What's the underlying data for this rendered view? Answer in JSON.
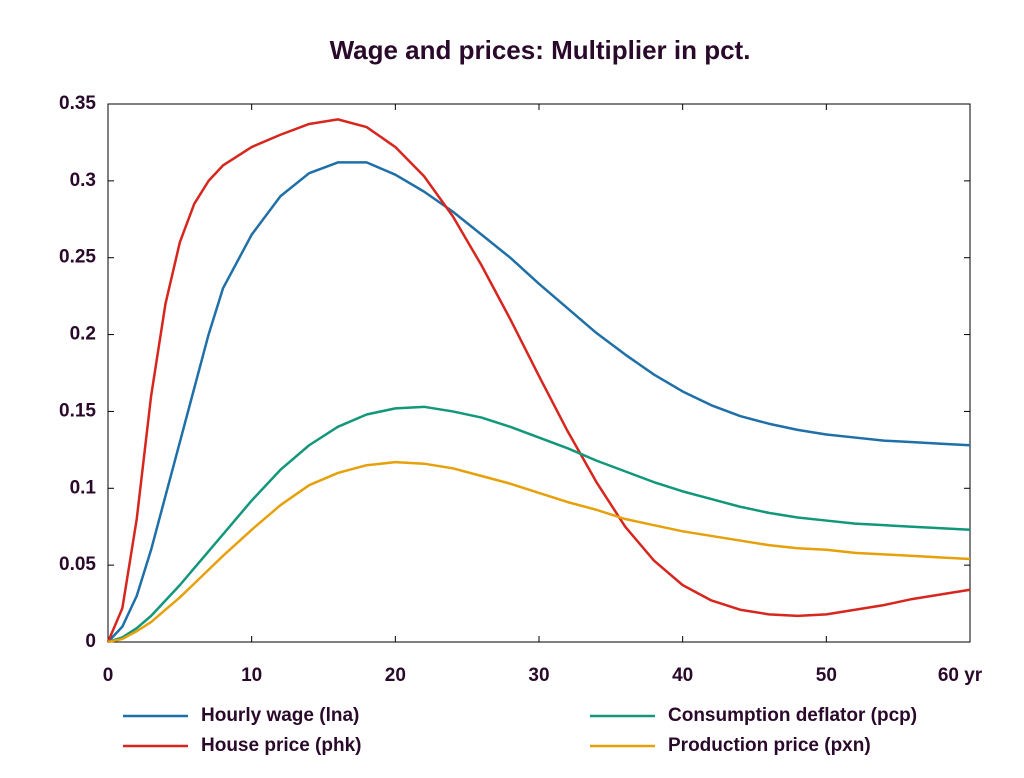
{
  "chart_data": {
    "type": "line",
    "title": "Wage and prices: Multiplier in pct.",
    "x": [
      0,
      1,
      2,
      3,
      4,
      5,
      6,
      7,
      8,
      10,
      12,
      14,
      16,
      18,
      20,
      22,
      24,
      26,
      28,
      30,
      32,
      34,
      36,
      38,
      40,
      42,
      44,
      46,
      48,
      50,
      52,
      54,
      56,
      58,
      60
    ],
    "series": [
      {
        "name": "Hourly wage (lna)",
        "color": "#1f6fa8",
        "values": [
          0,
          0.01,
          0.03,
          0.06,
          0.095,
          0.13,
          0.165,
          0.2,
          0.23,
          0.265,
          0.29,
          0.305,
          0.312,
          0.312,
          0.304,
          0.293,
          0.28,
          0.265,
          0.25,
          0.233,
          0.217,
          0.201,
          0.187,
          0.174,
          0.163,
          0.154,
          0.147,
          0.142,
          0.138,
          0.135,
          0.133,
          0.131,
          0.13,
          0.129,
          0.128
        ]
      },
      {
        "name": "House price (phk)",
        "color": "#d7261e",
        "values": [
          0,
          0.022,
          0.08,
          0.16,
          0.22,
          0.26,
          0.285,
          0.3,
          0.31,
          0.322,
          0.33,
          0.337,
          0.34,
          0.335,
          0.322,
          0.303,
          0.277,
          0.245,
          0.21,
          0.173,
          0.137,
          0.104,
          0.075,
          0.053,
          0.037,
          0.027,
          0.021,
          0.018,
          0.017,
          0.018,
          0.021,
          0.024,
          0.028,
          0.031,
          0.034
        ]
      },
      {
        "name": "Consumption deflator (pcp)",
        "color": "#12977a",
        "values": [
          0,
          0.003,
          0.009,
          0.017,
          0.027,
          0.037,
          0.048,
          0.059,
          0.07,
          0.092,
          0.112,
          0.128,
          0.14,
          0.148,
          0.152,
          0.153,
          0.15,
          0.146,
          0.14,
          0.133,
          0.126,
          0.118,
          0.111,
          0.104,
          0.098,
          0.093,
          0.088,
          0.084,
          0.081,
          0.079,
          0.077,
          0.076,
          0.075,
          0.074,
          0.073
        ]
      },
      {
        "name": "Production price (pxn)",
        "color": "#e6a10a",
        "values": [
          0,
          0.002,
          0.007,
          0.013,
          0.021,
          0.029,
          0.038,
          0.047,
          0.056,
          0.073,
          0.089,
          0.102,
          0.11,
          0.115,
          0.117,
          0.116,
          0.113,
          0.108,
          0.103,
          0.097,
          0.091,
          0.086,
          0.08,
          0.076,
          0.072,
          0.069,
          0.066,
          0.063,
          0.061,
          0.06,
          0.058,
          0.057,
          0.056,
          0.055,
          0.054
        ]
      }
    ],
    "xlim": [
      0,
      60
    ],
    "xticks": [
      0,
      10,
      20,
      30,
      40,
      50,
      {
        "value": 60,
        "label": "60 yr"
      }
    ],
    "ylim": [
      0,
      0.35
    ],
    "yticks": [
      0,
      0.05,
      0.1,
      0.15,
      0.2,
      0.25,
      0.3,
      0.35
    ]
  }
}
